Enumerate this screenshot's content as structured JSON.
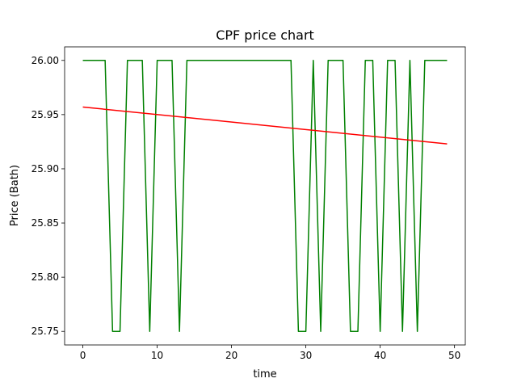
{
  "chart_data": {
    "type": "line",
    "title": "CPF price chart",
    "xlabel": "time",
    "ylabel": "Price (Bath)",
    "xlim": [
      -2.45,
      51.45
    ],
    "ylim": [
      25.7375,
      26.0125
    ],
    "xticks": [
      0,
      10,
      20,
      30,
      40,
      50
    ],
    "yticks": [
      25.75,
      25.8,
      25.85,
      25.9,
      25.95,
      26.0
    ],
    "ytick_labels": [
      "25.75",
      "25.80",
      "25.85",
      "25.90",
      "25.95",
      "26.00"
    ],
    "grid": false,
    "series": [
      {
        "color": "#008000",
        "x": [
          0,
          1,
          2,
          3,
          4,
          5,
          6,
          7,
          8,
          9,
          10,
          11,
          12,
          13,
          14,
          15,
          16,
          17,
          18,
          19,
          20,
          21,
          22,
          23,
          24,
          25,
          26,
          27,
          28,
          29,
          30,
          31,
          32,
          33,
          34,
          35,
          36,
          37,
          38,
          39,
          40,
          41,
          42,
          43,
          44,
          45,
          46,
          47,
          48,
          49
        ],
        "values": [
          26.0,
          26.0,
          26.0,
          26.0,
          25.75,
          25.75,
          26.0,
          26.0,
          26.0,
          25.75,
          26.0,
          26.0,
          26.0,
          25.75,
          26.0,
          26.0,
          26.0,
          26.0,
          26.0,
          26.0,
          26.0,
          26.0,
          26.0,
          26.0,
          26.0,
          26.0,
          26.0,
          26.0,
          26.0,
          25.75,
          25.75,
          26.0,
          25.75,
          26.0,
          26.0,
          26.0,
          25.75,
          25.75,
          26.0,
          26.0,
          25.75,
          26.0,
          26.0,
          25.75,
          26.0,
          25.75,
          26.0,
          26.0,
          26.0,
          26.0
        ]
      },
      {
        "color": "#ff0000",
        "x": [
          0,
          49
        ],
        "values": [
          25.957,
          25.923
        ]
      }
    ]
  }
}
